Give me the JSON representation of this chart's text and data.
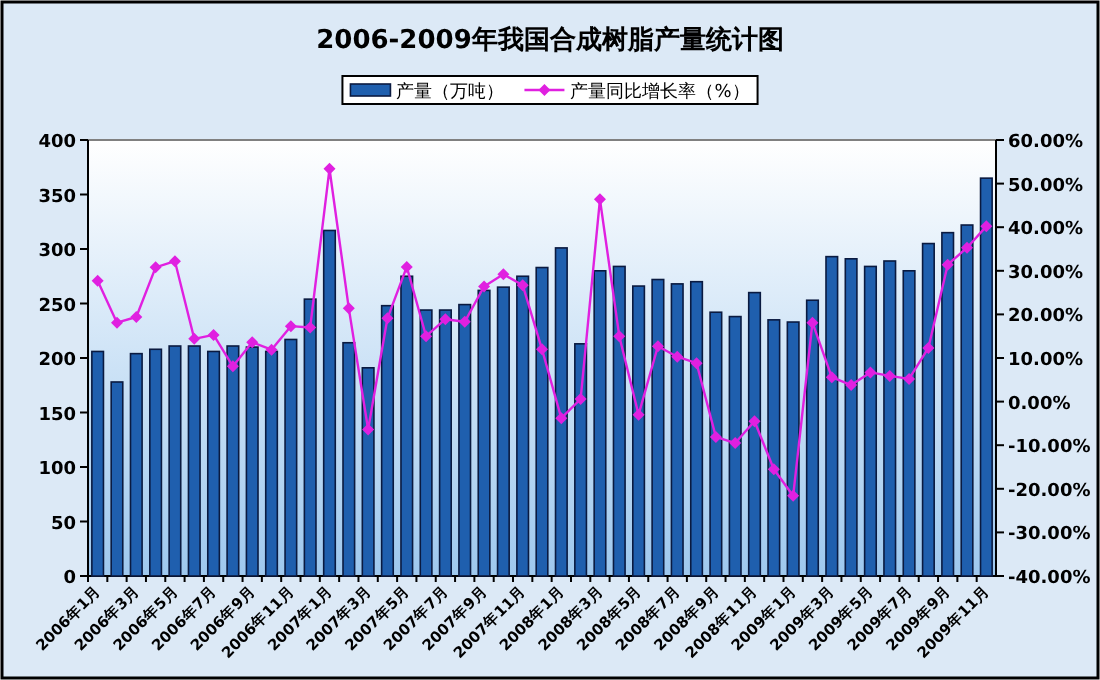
{
  "chart_data": {
    "type": "bar",
    "title": "2006-2009年我国合成树脂产量统计图",
    "categories": [
      "2006年1月",
      null,
      "2006年3月",
      null,
      "2006年5月",
      null,
      "2006年7月",
      null,
      "2006年9月",
      null,
      "2006年11月",
      null,
      "2007年1月",
      null,
      "2007年3月",
      null,
      "2007年5月",
      null,
      "2007年7月",
      null,
      "2007年9月",
      null,
      "2007年11月",
      null,
      "2008年1月",
      null,
      "2008年3月",
      null,
      "2008年5月",
      null,
      "2008年7月",
      null,
      "2008年9月",
      null,
      "2008年11月",
      null,
      "2009年1月",
      null,
      "2009年3月",
      null,
      "2009年5月",
      null,
      "2009年7月",
      null,
      "2009年9月",
      null,
      "2009年11月"
    ],
    "series": [
      {
        "name": "产量（万吨）",
        "color": "#1f5fae",
        "values": [
          206,
          178,
          204,
          208,
          211,
          211,
          206,
          211,
          210,
          206,
          217,
          254,
          317,
          214,
          191,
          248,
          275,
          244,
          244,
          249,
          262,
          265,
          275,
          283,
          301,
          213,
          280,
          284,
          266,
          272,
          268,
          270,
          242,
          238,
          260,
          235,
          233,
          253,
          293,
          291,
          284,
          289,
          280,
          305,
          315,
          322,
          365
        ]
      },
      {
        "name": "产量同比增长率（%）",
        "type": "line",
        "axis": "y2",
        "color": "#e020e0",
        "values": [
          27.7,
          18.1,
          19.4,
          30.8,
          32.2,
          14.4,
          15.3,
          8.1,
          13.6,
          11.9,
          17.3,
          17.0,
          53.4,
          21.4,
          -6.4,
          19.1,
          30.9,
          15.0,
          18.9,
          18.3,
          26.4,
          29.2,
          26.7,
          12.0,
          -3.8,
          0.6,
          46.4,
          15.0,
          -3.0,
          12.7,
          10.3,
          8.8,
          -8.1,
          -9.5,
          -4.5,
          -15.5,
          -21.6,
          18.1,
          5.6,
          3.8,
          6.7,
          5.9,
          5.2,
          12.3,
          31.4,
          35.3,
          40.2
        ]
      }
    ],
    "ylim": [
      0,
      400
    ],
    "yticks": [
      0,
      50,
      100,
      150,
      200,
      250,
      300,
      350,
      400
    ],
    "y2lim": [
      -40,
      60
    ],
    "y2ticks": [
      {
        "value": -40,
        "label": "-40.00%"
      },
      {
        "value": -30,
        "label": "-30.00%"
      },
      {
        "value": -20,
        "label": "-20.00%"
      },
      {
        "value": -10,
        "label": "-10.00%"
      },
      {
        "value": 0,
        "label": "0.00%"
      },
      {
        "value": 10,
        "label": "10.00%"
      },
      {
        "value": 20,
        "label": "20.00%"
      },
      {
        "value": 30,
        "label": "30.00%"
      },
      {
        "value": 40,
        "label": "40.00%"
      },
      {
        "value": 50,
        "label": "50.00%"
      },
      {
        "value": 60,
        "label": "60.00%"
      }
    ],
    "legend": "top",
    "marker": "diamond"
  }
}
